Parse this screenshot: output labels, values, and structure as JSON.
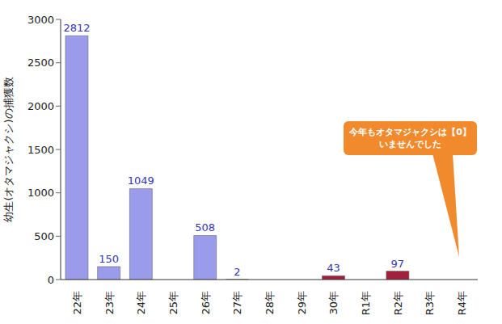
{
  "chart_data": {
    "type": "bar",
    "y_label": "幼生(オタマジャクシ)の捕獲数",
    "categories": [
      "22年",
      "23年",
      "24年",
      "25年",
      "26年",
      "27年",
      "28年",
      "29年",
      "30年",
      "R1年",
      "R2年",
      "R3年",
      "R4年"
    ],
    "values": [
      2812,
      150,
      1049,
      0,
      508,
      2,
      0,
      0,
      43,
      0,
      97,
      0,
      0
    ],
    "colors": [
      "#9b9bec",
      "#9b9bec",
      "#9b9bec",
      "#9b9bec",
      "#9b9bec",
      "#9b9bec",
      "#9b9bec",
      "#a3203c",
      "#a3203c",
      "#a3203c",
      "#a3203c",
      "#a3203c",
      "#a3203c"
    ],
    "ylim": [
      0,
      3000
    ],
    "yticks": [
      0,
      500,
      1000,
      1500,
      2000,
      2500,
      3000
    ],
    "grid": false,
    "data_labels": true,
    "annotation": [
      "今年もオタマジャクシは【0】",
      "いませんでした"
    ]
  }
}
